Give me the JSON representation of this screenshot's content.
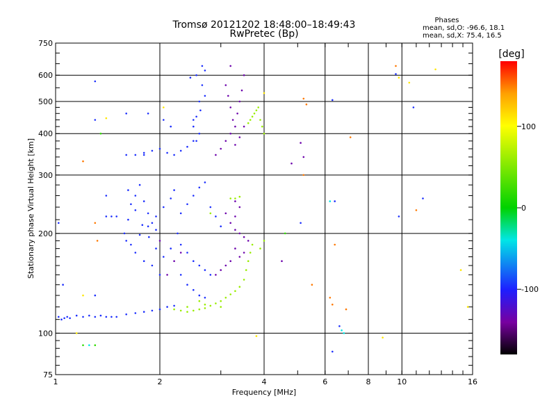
{
  "chart_data": {
    "type": "scatter",
    "title": "Tromsø 20121202 18:48:00–18:49:43",
    "subtitle": "RwPretec (Bp)",
    "xlabel": "Frequency [MHz]",
    "ylabel": "Stationary phase Virtual Height [km]",
    "x_scale": "log",
    "y_scale": "log",
    "xlim": [
      1,
      16
    ],
    "ylim": [
      75,
      750
    ],
    "x_ticks": [
      1,
      2,
      4,
      6,
      8,
      10,
      16
    ],
    "x_tick_labels": [
      "1",
      "2",
      "4",
      "6",
      "8",
      "10",
      "16"
    ],
    "x_grid": [
      2,
      4,
      6,
      8,
      10
    ],
    "y_ticks": [
      75,
      100,
      200,
      300,
      400,
      500,
      600,
      750
    ],
    "y_tick_labels": [
      "75",
      "100",
      "200",
      "300",
      "400",
      "500",
      "600",
      "750"
    ],
    "y_grid": [
      100,
      200,
      300,
      400,
      500,
      600
    ],
    "grid": true,
    "stats": {
      "header": "Phases",
      "line1": "mean, sd,O: -96.6, 18.1",
      "line2": "mean, sd,X:  75.4, 16.5"
    },
    "colorbar": {
      "label": "[deg]",
      "range": [
        -180,
        180
      ],
      "ticks": [
        100,
        0,
        -100
      ],
      "tick_labels": [
        "100",
        "0",
        "-100"
      ],
      "colormap": "rainbow: -180 black, -140 purple, -100 blue, -40 cyan, 0 green, 100 yellow, 180 red"
    },
    "series": [
      {
        "color_phase_deg": -95,
        "points": [
          [
            1.02,
            112
          ],
          [
            1.04,
            110
          ],
          [
            1.06,
            111
          ],
          [
            1.08,
            112
          ],
          [
            1.1,
            111
          ],
          [
            1.15,
            113
          ],
          [
            1.2,
            112
          ],
          [
            1.25,
            113
          ],
          [
            1.3,
            112
          ],
          [
            1.35,
            113
          ],
          [
            1.4,
            112
          ],
          [
            1.45,
            112
          ],
          [
            1.5,
            112
          ],
          [
            1.6,
            114
          ],
          [
            1.7,
            115
          ],
          [
            1.8,
            116
          ],
          [
            1.9,
            117
          ],
          [
            2.0,
            118
          ],
          [
            2.1,
            120
          ],
          [
            2.2,
            121
          ],
          [
            1.58,
            200
          ],
          [
            1.62,
            220
          ],
          [
            1.65,
            245
          ],
          [
            1.7,
            260
          ],
          [
            1.75,
            280
          ],
          [
            1.8,
            250
          ],
          [
            1.85,
            230
          ],
          [
            1.9,
            215
          ],
          [
            1.95,
            205
          ],
          [
            1.6,
            190
          ],
          [
            1.7,
            175
          ],
          [
            1.8,
            165
          ],
          [
            1.9,
            160
          ],
          [
            2.0,
            150
          ],
          [
            1.65,
            185
          ],
          [
            1.75,
            198
          ],
          [
            1.85,
            210
          ],
          [
            1.95,
            225
          ],
          [
            2.05,
            240
          ],
          [
            2.15,
            255
          ],
          [
            2.2,
            270
          ],
          [
            1.6,
            345
          ],
          [
            1.7,
            345
          ],
          [
            1.8,
            350
          ],
          [
            1.9,
            355
          ],
          [
            2.0,
            360
          ],
          [
            2.1,
            350
          ],
          [
            2.2,
            345
          ],
          [
            2.3,
            355
          ],
          [
            2.4,
            365
          ],
          [
            2.5,
            380
          ],
          [
            2.5,
            420
          ],
          [
            2.55,
            450
          ],
          [
            2.6,
            500
          ],
          [
            2.65,
            560
          ],
          [
            2.7,
            620
          ],
          [
            2.6,
            400
          ],
          [
            2.55,
            380
          ],
          [
            2.5,
            440
          ],
          [
            2.62,
            470
          ],
          [
            2.7,
            520
          ],
          [
            2.3,
            230
          ],
          [
            2.4,
            245
          ],
          [
            2.5,
            260
          ],
          [
            2.6,
            275
          ],
          [
            2.7,
            285
          ],
          [
            2.3,
            185
          ],
          [
            2.4,
            175
          ],
          [
            2.5,
            165
          ],
          [
            2.6,
            160
          ],
          [
            2.7,
            155
          ],
          [
            2.8,
            150
          ],
          [
            2.3,
            150
          ],
          [
            2.4,
            140
          ],
          [
            2.5,
            135
          ],
          [
            2.6,
            130
          ],
          [
            2.7,
            128
          ],
          [
            1.62,
            270
          ],
          [
            1.7,
            235
          ],
          [
            1.78,
            212
          ],
          [
            1.86,
            195
          ],
          [
            1.95,
            180
          ],
          [
            2.05,
            170
          ],
          [
            2.15,
            180
          ],
          [
            2.25,
            200
          ],
          [
            2.8,
            240
          ],
          [
            2.9,
            225
          ],
          [
            3.0,
            210
          ],
          [
            1.05,
            140
          ],
          [
            1.02,
            215
          ],
          [
            1.3,
            575
          ],
          [
            1.4,
            225
          ],
          [
            1.45,
            225
          ],
          [
            1.5,
            225
          ],
          [
            1.8,
            345
          ],
          [
            1.85,
            460
          ],
          [
            1.6,
            460
          ],
          [
            2.15,
            420
          ],
          [
            2.05,
            440
          ],
          [
            2.45,
            590
          ],
          [
            2.55,
            600
          ],
          [
            2.65,
            640
          ],
          [
            6.3,
            505
          ],
          [
            6.4,
            250
          ],
          [
            5.1,
            215
          ],
          [
            9.6,
            605
          ],
          [
            9.8,
            225
          ],
          [
            10.8,
            480
          ],
          [
            11.5,
            255
          ],
          [
            6.6,
            105
          ],
          [
            6.3,
            88
          ],
          [
            1.3,
            130
          ],
          [
            1.3,
            440
          ],
          [
            1.4,
            260
          ]
        ]
      },
      {
        "color_phase_deg": -135,
        "points": [
          [
            3.1,
            560
          ],
          [
            3.15,
            520
          ],
          [
            3.2,
            480
          ],
          [
            3.25,
            440
          ],
          [
            3.3,
            420
          ],
          [
            3.35,
            460
          ],
          [
            3.4,
            500
          ],
          [
            3.45,
            540
          ],
          [
            3.5,
            600
          ],
          [
            3.2,
            400
          ],
          [
            3.1,
            380
          ],
          [
            3.0,
            360
          ],
          [
            2.9,
            345
          ],
          [
            3.3,
            370
          ],
          [
            3.4,
            390
          ],
          [
            3.5,
            420
          ],
          [
            3.2,
            640
          ],
          [
            3.1,
            230
          ],
          [
            3.2,
            215
          ],
          [
            3.3,
            205
          ],
          [
            3.4,
            200
          ],
          [
            3.5,
            195
          ],
          [
            3.6,
            190
          ],
          [
            3.3,
            180
          ],
          [
            3.4,
            170
          ],
          [
            3.5,
            175
          ],
          [
            3.2,
            165
          ],
          [
            3.1,
            160
          ],
          [
            3.0,
            155
          ],
          [
            2.9,
            150
          ],
          [
            3.3,
            225
          ],
          [
            3.4,
            240
          ],
          [
            2.1,
            150
          ],
          [
            2.2,
            165
          ],
          [
            2.3,
            175
          ],
          [
            2.0,
            190
          ],
          [
            5.1,
            375
          ],
          [
            5.2,
            340
          ],
          [
            4.8,
            325
          ],
          [
            4.5,
            165
          ],
          [
            3.3,
            250
          ]
        ]
      },
      {
        "color_phase_deg": 60,
        "points": [
          [
            2.2,
            118
          ],
          [
            2.3,
            117
          ],
          [
            2.4,
            116
          ],
          [
            2.5,
            117
          ],
          [
            2.6,
            118
          ],
          [
            2.7,
            119
          ],
          [
            2.8,
            121
          ],
          [
            2.9,
            123
          ],
          [
            3.0,
            125
          ],
          [
            3.1,
            128
          ],
          [
            3.2,
            131
          ],
          [
            3.3,
            134
          ],
          [
            3.4,
            138
          ],
          [
            3.5,
            145
          ],
          [
            3.55,
            155
          ],
          [
            3.6,
            165
          ],
          [
            3.65,
            175
          ],
          [
            3.7,
            185
          ],
          [
            3.6,
            430
          ],
          [
            3.65,
            440
          ],
          [
            3.7,
            450
          ],
          [
            3.75,
            460
          ],
          [
            3.8,
            470
          ],
          [
            3.85,
            480
          ],
          [
            3.9,
            440
          ],
          [
            3.95,
            420
          ],
          [
            4.0,
            400
          ],
          [
            3.2,
            255
          ],
          [
            3.3,
            255
          ],
          [
            3.4,
            258
          ],
          [
            3.9,
            180
          ],
          [
            4.0,
            190
          ],
          [
            2.8,
            230
          ],
          [
            2.6,
            125
          ],
          [
            2.7,
            122
          ],
          [
            3.0,
            120
          ],
          [
            2.4,
            120
          ]
        ]
      },
      {
        "color_phase_deg": 150,
        "points": [
          [
            5.2,
            510
          ],
          [
            5.3,
            490
          ],
          [
            5.2,
            300
          ],
          [
            6.4,
            185
          ],
          [
            6.2,
            128
          ],
          [
            6.3,
            122
          ],
          [
            6.9,
            118
          ],
          [
            7.1,
            390
          ],
          [
            9.6,
            640
          ],
          [
            1.2,
            330
          ],
          [
            1.3,
            215
          ],
          [
            1.32,
            190
          ],
          [
            11.0,
            235
          ],
          [
            5.5,
            140
          ]
        ]
      },
      {
        "color_phase_deg": 110,
        "points": [
          [
            2.05,
            480
          ],
          [
            1.4,
            445
          ],
          [
            4.0,
            530
          ],
          [
            10.5,
            570
          ],
          [
            12.5,
            625
          ],
          [
            14.8,
            155
          ],
          [
            15.5,
            120
          ],
          [
            9.8,
            590
          ],
          [
            3.8,
            98
          ],
          [
            8.8,
            97
          ],
          [
            1.2,
            130
          ],
          [
            1.15,
            100
          ]
        ]
      },
      {
        "color_phase_deg": 20,
        "points": [
          [
            1.2,
            92
          ],
          [
            1.3,
            92
          ],
          [
            1.35,
            400
          ],
          [
            4.6,
            200
          ]
        ]
      },
      {
        "color_phase_deg": -40,
        "points": [
          [
            6.7,
            102
          ],
          [
            6.8,
            100
          ],
          [
            1.25,
            92
          ],
          [
            6.2,
            250
          ]
        ]
      }
    ]
  }
}
